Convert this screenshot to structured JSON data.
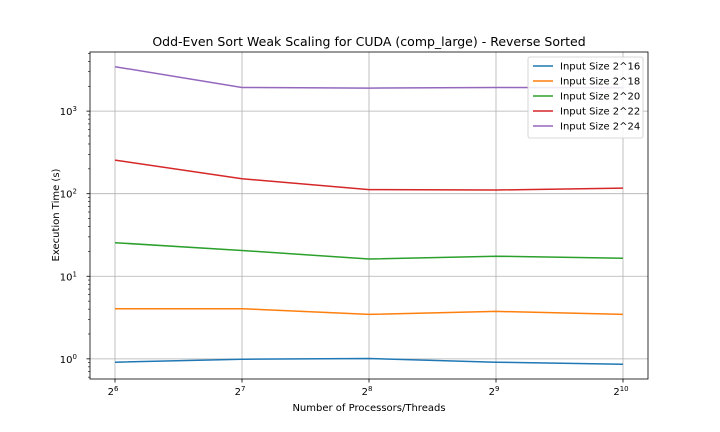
{
  "chart_data": {
    "type": "line",
    "title": "Odd-Even Sort Weak Scaling for CUDA (comp_large) - Reverse Sorted",
    "xlabel": "Number of Processors/Threads",
    "ylabel": "Execution Time (s)",
    "x_scale": "log2",
    "y_scale": "log10",
    "x": [
      64,
      128,
      256,
      512,
      1024
    ],
    "x_tick_labels": [
      {
        "base": "2",
        "exp": "6"
      },
      {
        "base": "2",
        "exp": "7"
      },
      {
        "base": "2",
        "exp": "8"
      },
      {
        "base": "2",
        "exp": "9"
      },
      {
        "base": "2",
        "exp": "10"
      }
    ],
    "y_tick_labels": [
      {
        "base": "10",
        "exp": "0"
      },
      {
        "base": "10",
        "exp": "1"
      },
      {
        "base": "10",
        "exp": "2"
      },
      {
        "base": "10",
        "exp": "3"
      }
    ],
    "ylim": [
      0.57,
      5200
    ],
    "grid": true,
    "legend_position": "top-right",
    "series": [
      {
        "name": "Input Size 2^16",
        "color": "#1f77b4",
        "values": [
          0.91,
          0.99,
          1.01,
          0.91,
          0.86
        ]
      },
      {
        "name": "Input Size 2^18",
        "color": "#ff7f0e",
        "values": [
          4.05,
          4.05,
          3.45,
          3.75,
          3.45
        ]
      },
      {
        "name": "Input Size 2^20",
        "color": "#2ca02c",
        "values": [
          25.5,
          20.5,
          16.2,
          17.5,
          16.5
        ]
      },
      {
        "name": "Input Size 2^22",
        "color": "#d62728",
        "values": [
          255,
          152,
          112,
          111,
          117
        ]
      },
      {
        "name": "Input Size 2^24",
        "color": "#9467bd",
        "values": [
          3450,
          1930,
          1900,
          1930,
          1920
        ]
      }
    ]
  }
}
